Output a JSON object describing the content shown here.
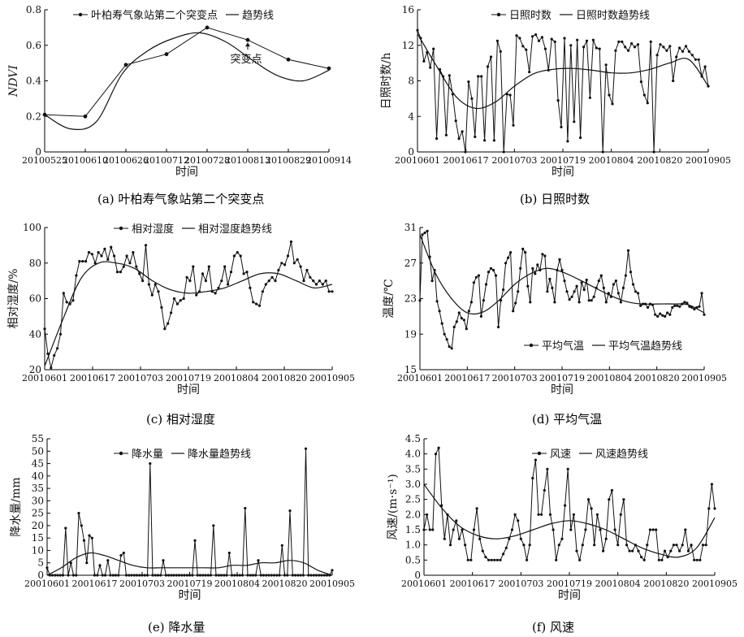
{
  "chart_data": [
    {
      "type": "line",
      "caption": "(a) 叶柏寿气象站第二个突变点",
      "ylabel": "NDVI",
      "xlabel": "时间",
      "ylim": [
        0,
        0.8
      ],
      "yticks": [
        "0",
        "0.2",
        "0.4",
        "0.6",
        "0.8"
      ],
      "x_ticks": [
        "20100525",
        "20100610",
        "20100626",
        "20100712",
        "20100728",
        "20100813",
        "20100829",
        "20100914"
      ],
      "annotation": "突变点",
      "series": [
        {
          "name": "叶柏寿气象站第二个突变点",
          "values": [
            0.21,
            0.2,
            0.49,
            0.55,
            0.7,
            0.63,
            0.52,
            0.47
          ]
        },
        {
          "name": "趋势线",
          "values": [
            0.21,
            0.13,
            0.17,
            0.44,
            0.57,
            0.64,
            0.67,
            0.62,
            0.52,
            0.43,
            0.4,
            0.46
          ]
        }
      ]
    },
    {
      "type": "line",
      "caption": "(b) 日照时数",
      "ylabel": "日照时数/h",
      "xlabel": "时间",
      "ylim": [
        0,
        16
      ],
      "yticks": [
        "0",
        "4",
        "8",
        "12",
        "16"
      ],
      "x_ticks": [
        "20010601",
        "20010617",
        "20010703",
        "20010719",
        "20010804",
        "20010820",
        "20010905"
      ],
      "series": [
        {
          "name": "日照时数",
          "values": [
            13.7,
            12.8,
            10.2,
            11.2,
            9.5,
            11.6,
            1.5,
            9.3,
            8.5,
            1.9,
            8.6,
            6.5,
            3.5,
            1.5,
            2.3,
            0,
            7.9,
            6.0,
            1.7,
            8.5,
            8.5,
            1.3,
            9.6,
            10.7,
            1.3,
            12.5,
            11.3,
            0,
            6.5,
            6.4,
            3.0,
            13.1,
            12.8,
            11.9,
            11.5,
            9.0,
            13.0,
            13.2,
            12.5,
            12.9,
            11.6,
            9.2,
            12.7,
            12.4,
            5.8,
            2.8,
            12.8,
            1.2,
            12.0,
            3.4,
            12.6,
            1.6,
            11.8,
            12.5,
            6.1,
            12.6,
            11.7,
            11.6,
            0,
            9.8,
            6.4,
            5.4,
            11.4,
            12.4,
            12.4,
            11.8,
            11.4,
            12.2,
            11.8,
            12.1,
            7.9,
            6.4,
            5.5,
            12.4,
            0,
            10.9,
            12.1,
            11.8,
            11.4,
            11.9,
            8.0,
            10.7,
            11.7,
            11.3,
            11.9,
            11.3,
            10.9,
            10.4,
            10.4,
            8.5,
            9.6,
            7.4
          ]
        },
        {
          "name": "日照时数趋势线",
          "values": [
            13.3,
            9.6,
            6.2,
            4.9,
            5.6,
            7.4,
            8.8,
            9.3,
            9.4,
            9.2,
            8.9,
            8.9,
            9.3,
            10.0,
            10.4,
            7.4
          ]
        }
      ]
    },
    {
      "type": "line",
      "caption": "(c) 相对湿度",
      "ylabel": "相对湿度/%",
      "xlabel": "时间",
      "ylim": [
        20,
        100
      ],
      "yticks": [
        "20",
        "40",
        "60",
        "80",
        "100"
      ],
      "x_ticks": [
        "20010601",
        "20010617",
        "20010703",
        "20010719",
        "20010804",
        "20010820",
        "20010905"
      ],
      "series": [
        {
          "name": "相对湿度",
          "values": [
            43,
            29,
            21,
            28,
            32,
            40,
            63,
            58,
            57,
            59,
            73,
            81,
            81,
            81,
            86,
            85,
            80,
            86,
            84,
            88,
            82,
            89,
            84,
            75,
            75,
            78,
            84,
            80,
            86,
            78,
            74,
            70,
            90,
            68,
            62,
            68,
            64,
            55,
            43,
            46,
            52,
            60,
            57,
            59,
            60,
            72,
            70,
            78,
            62,
            64,
            74,
            70,
            78,
            64,
            63,
            66,
            70,
            78,
            68,
            75,
            84,
            86,
            84,
            74,
            75,
            66,
            58,
            57,
            56,
            64,
            68,
            70,
            72,
            70,
            76,
            80,
            79,
            84,
            92,
            80,
            82,
            78,
            70,
            76,
            72,
            70,
            68,
            70,
            68,
            70,
            64,
            64
          ]
        },
        {
          "name": "相对湿度趋势线",
          "values": [
            22,
            48,
            71,
            80,
            80,
            77,
            70,
            65,
            63,
            64,
            66,
            70,
            74,
            74,
            70,
            66,
            68
          ]
        }
      ]
    },
    {
      "type": "line",
      "caption": "(d) 平均气温",
      "ylabel": "温度/℃",
      "xlabel": "时间",
      "ylim": [
        15,
        31
      ],
      "yticks": [
        "15",
        "19",
        "23",
        "27",
        "31"
      ],
      "x_ticks": [
        "20010601",
        "20010617",
        "20010703",
        "20010719",
        "20010804",
        "20010820",
        "20010905"
      ],
      "series": [
        {
          "name": "平均气温",
          "values": [
            22.8,
            30.2,
            30.4,
            30.6,
            27.7,
            25.0,
            26.2,
            22.7,
            21.6,
            20.2,
            19.0,
            18.4,
            17.6,
            17.4,
            19.8,
            20.4,
            21.4,
            20.8,
            20.6,
            19.6,
            21.6,
            22.6,
            24.8,
            25.4,
            25.6,
            21.0,
            22.8,
            24.6,
            26.0,
            26.4,
            26.2,
            25.6,
            19.8,
            22.8,
            24.0,
            27.0,
            27.6,
            28.2,
            21.6,
            22.5,
            23.8,
            26.4,
            28.6,
            28.2,
            24.4,
            22.6,
            26.4,
            25.8,
            26.8,
            26.2,
            28.0,
            27.8,
            23.8,
            25.2,
            24.2,
            22.6,
            26.2,
            27.4,
            26.2,
            25.0,
            23.8,
            22.9,
            23.2,
            23.8,
            24.4,
            22.6,
            24.8,
            24.0,
            25.1,
            22.8,
            22.8,
            23.2,
            24.2,
            25.0,
            25.6,
            24.2,
            22.6,
            23.6,
            23.2,
            24.6,
            25.0,
            23.6,
            22.6,
            24.2,
            25.6,
            28.4,
            26.0,
            24.6,
            23.8,
            23.6,
            22.2,
            22.4,
            22.4,
            22.0,
            22.4,
            22.3,
            21.2,
            21.0,
            21.3,
            21.1,
            21.0,
            21.4,
            21.2,
            22.0,
            22.2,
            22.2,
            22.1,
            22.4,
            22.6,
            22.5,
            22.1,
            22.0,
            21.8,
            22.0,
            22.1,
            23.6,
            21.2
          ]
        },
        {
          "name": "平均气温趋势线",
          "values": [
            30.2,
            25.8,
            23.0,
            21.4,
            21.5,
            22.8,
            24.6,
            25.8,
            26.4,
            26.0,
            25.2,
            24.3,
            23.4,
            22.7,
            22.4,
            22.4,
            22.4,
            22.3,
            21.4
          ]
        }
      ]
    },
    {
      "type": "line",
      "caption": "(e) 降水量",
      "ylabel": "降水量/mm",
      "xlabel": "时间",
      "ylim": [
        0,
        55
      ],
      "yticks": [
        "0",
        "5",
        "10",
        "15",
        "20",
        "25",
        "30",
        "35",
        "40",
        "45",
        "50",
        "55"
      ],
      "x_ticks": [
        "20010601",
        "20010617",
        "20010703",
        "20010719",
        "20010804",
        "20010820",
        "20010905"
      ],
      "series": [
        {
          "name": "降水量",
          "values": [
            3,
            0,
            0,
            0,
            0,
            0,
            0,
            19,
            0,
            5,
            0,
            0,
            25,
            20,
            14,
            5,
            16,
            15,
            0,
            0,
            4,
            0,
            0,
            6,
            0,
            0,
            0,
            0,
            8,
            9,
            0,
            0,
            0,
            0,
            0,
            0,
            0,
            0,
            0,
            45,
            0,
            0,
            0,
            0,
            6,
            0,
            0,
            0,
            0,
            0,
            0,
            0,
            0,
            0,
            0,
            0,
            14,
            0,
            0,
            0,
            0,
            0,
            0,
            20,
            0,
            0,
            0,
            0,
            0,
            9,
            0,
            0,
            0,
            0,
            0,
            27,
            0,
            0,
            0,
            0,
            6,
            0,
            0,
            0,
            0,
            0,
            0,
            0,
            0,
            12,
            0,
            0,
            26,
            0,
            0,
            0,
            0,
            0,
            51,
            0,
            0,
            0,
            0,
            0,
            0,
            0,
            0,
            0,
            2
          ]
        },
        {
          "name": "降水量趋势线",
          "values": [
            0,
            3,
            7,
            9,
            8,
            6,
            4,
            3,
            3,
            3,
            3,
            3,
            3,
            4,
            4,
            5,
            5,
            6,
            5,
            2,
            0
          ]
        }
      ]
    },
    {
      "type": "line",
      "caption": "(f) 风速",
      "ylabel": "风速/(m·s⁻¹)",
      "xlabel": "时间",
      "ylim": [
        0,
        4.5
      ],
      "yticks": [
        "0",
        "0.5",
        "1.0",
        "1.5",
        "2.0",
        "2.5",
        "3.0",
        "3.5",
        "4.0",
        "4.5"
      ],
      "x_ticks": [
        "20010601",
        "20010617",
        "20010703",
        "20010719",
        "20010804",
        "20010820",
        "20010905"
      ],
      "series": [
        {
          "name": "风速",
          "values": [
            1.5,
            2.0,
            1.5,
            1.5,
            4.0,
            4.2,
            2.3,
            1.2,
            2.0,
            1.0,
            1.5,
            1.8,
            1.2,
            1.5,
            1.0,
            0.5,
            0.5,
            1.5,
            2.2,
            1.2,
            0.8,
            0.6,
            0.5,
            0.5,
            0.5,
            0.5,
            0.5,
            0.7,
            0.9,
            1.2,
            1.5,
            2.0,
            1.8,
            1.2,
            1.0,
            0.5,
            1.0,
            3.2,
            3.8,
            2.0,
            2.0,
            2.8,
            3.5,
            2.0,
            1.5,
            0.5,
            1.0,
            1.2,
            2.3,
            3.5,
            1.5,
            2.0,
            0.8,
            0.5,
            1.0,
            1.5,
            2.5,
            2.2,
            1.0,
            2.0,
            1.5,
            0.8,
            1.2,
            2.5,
            2.8,
            1.5,
            1.0,
            2.0,
            2.5,
            1.0,
            0.8,
            0.8,
            1.0,
            0.8,
            0.6,
            0.5,
            1.0,
            1.5,
            1.5,
            1.5,
            0.5,
            0.5,
            0.8,
            0.6,
            0.8,
            1.0,
            1.0,
            0.8,
            1.0,
            1.5,
            0.8,
            1.0,
            0.5,
            0.5,
            0.5,
            1.0,
            1.0,
            2.2,
            3.0,
            2.2
          ]
        },
        {
          "name": "风速趋势线",
          "values": [
            3.0,
            2.2,
            1.6,
            1.3,
            1.2,
            1.3,
            1.5,
            1.7,
            1.8,
            1.7,
            1.5,
            1.2,
            0.9,
            0.7,
            0.6,
            0.9,
            1.9
          ]
        }
      ]
    }
  ]
}
